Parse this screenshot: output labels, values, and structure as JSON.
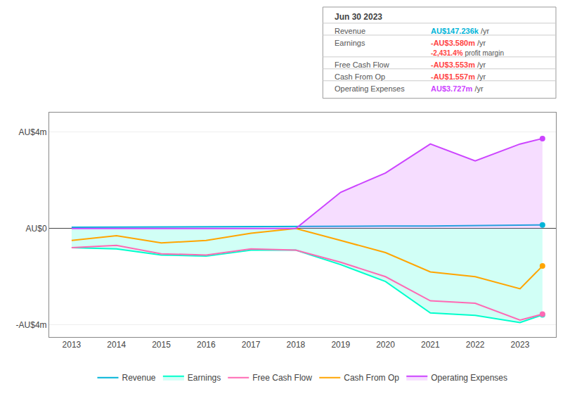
{
  "chart_data": {
    "type": "line",
    "x": [
      2013,
      2014,
      2015,
      2016,
      2017,
      2018,
      2019,
      2020,
      2021,
      2022,
      2023,
      2023.5
    ],
    "xlim": [
      2012.5,
      2023.8
    ],
    "xticks": [
      2013,
      2014,
      2015,
      2016,
      2017,
      2018,
      2019,
      2020,
      2021,
      2022,
      2023
    ],
    "ylim": [
      -4.5,
      4.8
    ],
    "yticks": [
      {
        "value": 4,
        "label": "AU$4m"
      },
      {
        "value": 0,
        "label": "AU$0"
      },
      {
        "value": -4,
        "label": "-AU$4m"
      }
    ],
    "grid": true,
    "legend": "bottom",
    "series": [
      {
        "name": "Revenue",
        "color": "#00b4d8",
        "values": [
          0.05,
          0.06,
          0.07,
          0.07,
          0.08,
          0.09,
          0.09,
          0.1,
          0.1,
          0.12,
          0.15,
          0.147
        ]
      },
      {
        "name": "Earnings",
        "color": "#00ffcc",
        "values": [
          -0.8,
          -0.85,
          -1.1,
          -1.15,
          -0.9,
          -0.9,
          -1.5,
          -2.2,
          -3.5,
          -3.6,
          -3.9,
          -3.58
        ]
      },
      {
        "name": "Free Cash Flow",
        "color": "#ff69b4",
        "values": [
          -0.8,
          -0.7,
          -1.05,
          -1.1,
          -0.85,
          -0.9,
          -1.4,
          -2.0,
          -3.0,
          -3.1,
          -3.8,
          -3.553
        ]
      },
      {
        "name": "Cash From Op",
        "color": "#ffa500",
        "values": [
          -0.5,
          -0.3,
          -0.6,
          -0.5,
          -0.2,
          0.0,
          -0.5,
          -1.0,
          -1.8,
          -2.0,
          -2.5,
          -1.557
        ]
      },
      {
        "name": "Operating Expenses",
        "color": "#cc44ff",
        "values": [
          0.0,
          0.0,
          0.0,
          0.0,
          0.0,
          0.0,
          1.5,
          2.3,
          3.5,
          2.8,
          3.5,
          3.727
        ]
      }
    ],
    "annotations": {
      "title": "Jun 30 2023",
      "rows": [
        {
          "label": "Revenue",
          "value": "AU$147.236k",
          "unit": "/yr",
          "color": "#00b4d8"
        },
        {
          "label": "Earnings",
          "value": "-AU$3.580m",
          "unit": "/yr",
          "color": "#ff4444",
          "sub_value": "-2,431.4%",
          "sub_unit": "profit margin",
          "sub_color": "#ff4444"
        },
        {
          "label": "Free Cash Flow",
          "value": "-AU$3.553m",
          "unit": "/yr",
          "color": "#ff4444"
        },
        {
          "label": "Cash From Op",
          "value": "-AU$1.557m",
          "unit": "/yr",
          "color": "#ff4444"
        },
        {
          "label": "Operating Expenses",
          "value": "AU$3.727m",
          "unit": "/yr",
          "color": "#cc44ff"
        }
      ]
    }
  }
}
